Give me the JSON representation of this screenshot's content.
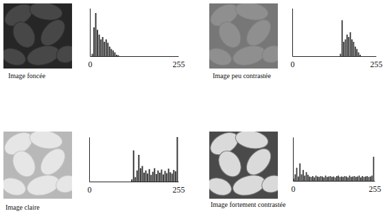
{
  "chart_data": [
    {
      "type": "histogram",
      "title": "Image foncée",
      "bins": [
        0,
        5,
        10,
        15,
        20,
        25,
        30,
        35,
        40,
        45,
        50,
        55,
        60,
        65,
        70,
        75,
        80,
        85,
        90,
        95,
        100,
        105,
        110,
        115,
        120,
        125,
        130,
        135,
        140,
        145,
        150,
        155,
        160,
        165,
        170,
        175,
        180,
        185,
        190,
        195,
        200,
        205,
        210,
        215,
        220,
        225,
        230,
        235,
        240,
        245,
        250,
        255
      ],
      "counts": [
        0,
        5,
        60,
        90,
        55,
        45,
        35,
        40,
        30,
        35,
        28,
        20,
        15,
        12,
        8,
        3,
        2,
        0,
        0,
        0,
        0,
        0,
        0,
        0,
        0,
        0,
        0,
        0,
        0,
        0,
        0,
        0,
        0,
        0,
        0,
        0,
        0,
        0,
        0,
        0,
        0,
        0,
        0,
        0,
        0,
        0,
        0,
        0,
        0,
        0,
        0
      ],
      "xlim": [
        0,
        255
      ],
      "xticks": [
        0,
        255
      ],
      "ylim": [
        0,
        100
      ],
      "tick_labels": "x",
      "color": "#333333"
    },
    {
      "type": "histogram",
      "title": "Image peu contrastée",
      "bins": [
        0,
        5,
        10,
        15,
        20,
        25,
        30,
        35,
        40,
        45,
        50,
        55,
        60,
        65,
        70,
        75,
        80,
        85,
        90,
        95,
        100,
        105,
        110,
        115,
        120,
        125,
        130,
        135,
        140,
        145,
        150,
        155,
        160,
        165,
        170,
        175,
        180,
        185,
        190,
        195,
        200,
        205,
        210,
        215,
        220,
        225,
        230,
        235,
        240,
        245,
        250,
        255
      ],
      "counts": [
        0,
        0,
        0,
        0,
        0,
        0,
        0,
        0,
        0,
        0,
        0,
        0,
        0,
        0,
        0,
        0,
        0,
        0,
        0,
        0,
        0,
        0,
        0,
        0,
        0,
        0,
        0,
        0,
        0,
        5,
        75,
        30,
        35,
        45,
        40,
        50,
        35,
        30,
        20,
        15,
        8,
        3,
        0,
        0,
        0,
        0,
        0,
        0,
        0,
        0,
        0
      ],
      "xlim": [
        0,
        255
      ],
      "xticks": [
        0,
        255
      ],
      "ylim": [
        0,
        100
      ],
      "tick_labels": "x",
      "color": "#333333"
    },
    {
      "type": "histogram",
      "title": "Image claire",
      "bins": [
        0,
        5,
        10,
        15,
        20,
        25,
        30,
        35,
        40,
        45,
        50,
        55,
        60,
        65,
        70,
        75,
        80,
        85,
        90,
        95,
        100,
        105,
        110,
        115,
        120,
        125,
        130,
        135,
        140,
        145,
        150,
        155,
        160,
        165,
        170,
        175,
        180,
        185,
        190,
        195,
        200,
        205,
        210,
        215,
        220,
        225,
        230,
        235,
        240,
        245,
        250,
        255
      ],
      "counts": [
        0,
        0,
        0,
        0,
        0,
        0,
        0,
        0,
        0,
        0,
        0,
        0,
        0,
        0,
        0,
        0,
        0,
        0,
        0,
        0,
        0,
        0,
        0,
        0,
        5,
        70,
        10,
        25,
        60,
        30,
        35,
        20,
        25,
        18,
        28,
        15,
        22,
        30,
        17,
        25,
        20,
        27,
        16,
        24,
        19,
        29,
        21,
        18,
        26,
        23,
        100
      ],
      "xlim": [
        0,
        255
      ],
      "xticks": [
        0,
        255
      ],
      "ylim": [
        0,
        100
      ],
      "tick_labels": "x",
      "color": "#333333"
    },
    {
      "type": "histogram",
      "title": "Image fortement contrastée",
      "bins": [
        0,
        5,
        10,
        15,
        20,
        25,
        30,
        35,
        40,
        45,
        50,
        55,
        60,
        65,
        70,
        75,
        80,
        85,
        90,
        95,
        100,
        105,
        110,
        115,
        120,
        125,
        130,
        135,
        140,
        145,
        150,
        155,
        160,
        165,
        170,
        175,
        180,
        185,
        190,
        195,
        200,
        205,
        210,
        215,
        220,
        225,
        230,
        235,
        240,
        245,
        250,
        255
      ],
      "counts": [
        5,
        15,
        30,
        10,
        40,
        15,
        25,
        12,
        20,
        14,
        10,
        9,
        11,
        8,
        12,
        10,
        9,
        11,
        10,
        8,
        12,
        9,
        10,
        11,
        9,
        10,
        8,
        11,
        12,
        9,
        10,
        9,
        11,
        10,
        8,
        12,
        9,
        10,
        11,
        9,
        10,
        12,
        8,
        11,
        9,
        10,
        11,
        9,
        10,
        12,
        55
      ],
      "xlim": [
        0,
        255
      ],
      "xticks": [
        0,
        255
      ],
      "ylim": [
        0,
        100
      ],
      "tick_labels": "x",
      "color": "#333333"
    }
  ]
}
